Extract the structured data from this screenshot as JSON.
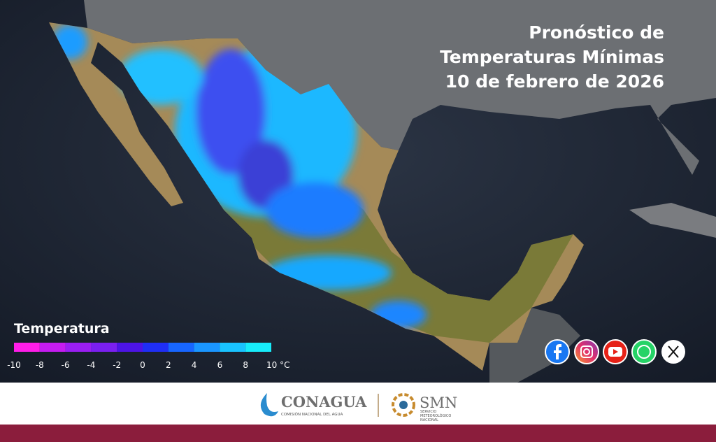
{
  "header": {
    "title_lines": [
      "Pronóstico de",
      "Temperaturas Mínimas",
      "10 de febrero de 2026"
    ]
  },
  "legend": {
    "title": "Temperatura",
    "ticks": [
      -10,
      -8,
      -6,
      -4,
      -2,
      0,
      2,
      4,
      6,
      8,
      {
        "value": 10,
        "label": "10 °C"
      }
    ],
    "colors": [
      "#ff1de8",
      "#c51cf0",
      "#9a1ef2",
      "#7a1ff0",
      "#4d14e6",
      "#1f2ef5",
      "#1766ff",
      "#1a96ff",
      "#19c3ff",
      "#17ecfa"
    ]
  },
  "footer": {
    "conagua": {
      "name": "CONAGUA",
      "subtitle": "COMISIÓN NACIONAL DEL AGUA"
    },
    "smn": {
      "name": "SMN",
      "subtitle_lines": [
        "SERVICIO",
        "METEOROLÓGICO",
        "NACIONAL"
      ]
    }
  }
}
